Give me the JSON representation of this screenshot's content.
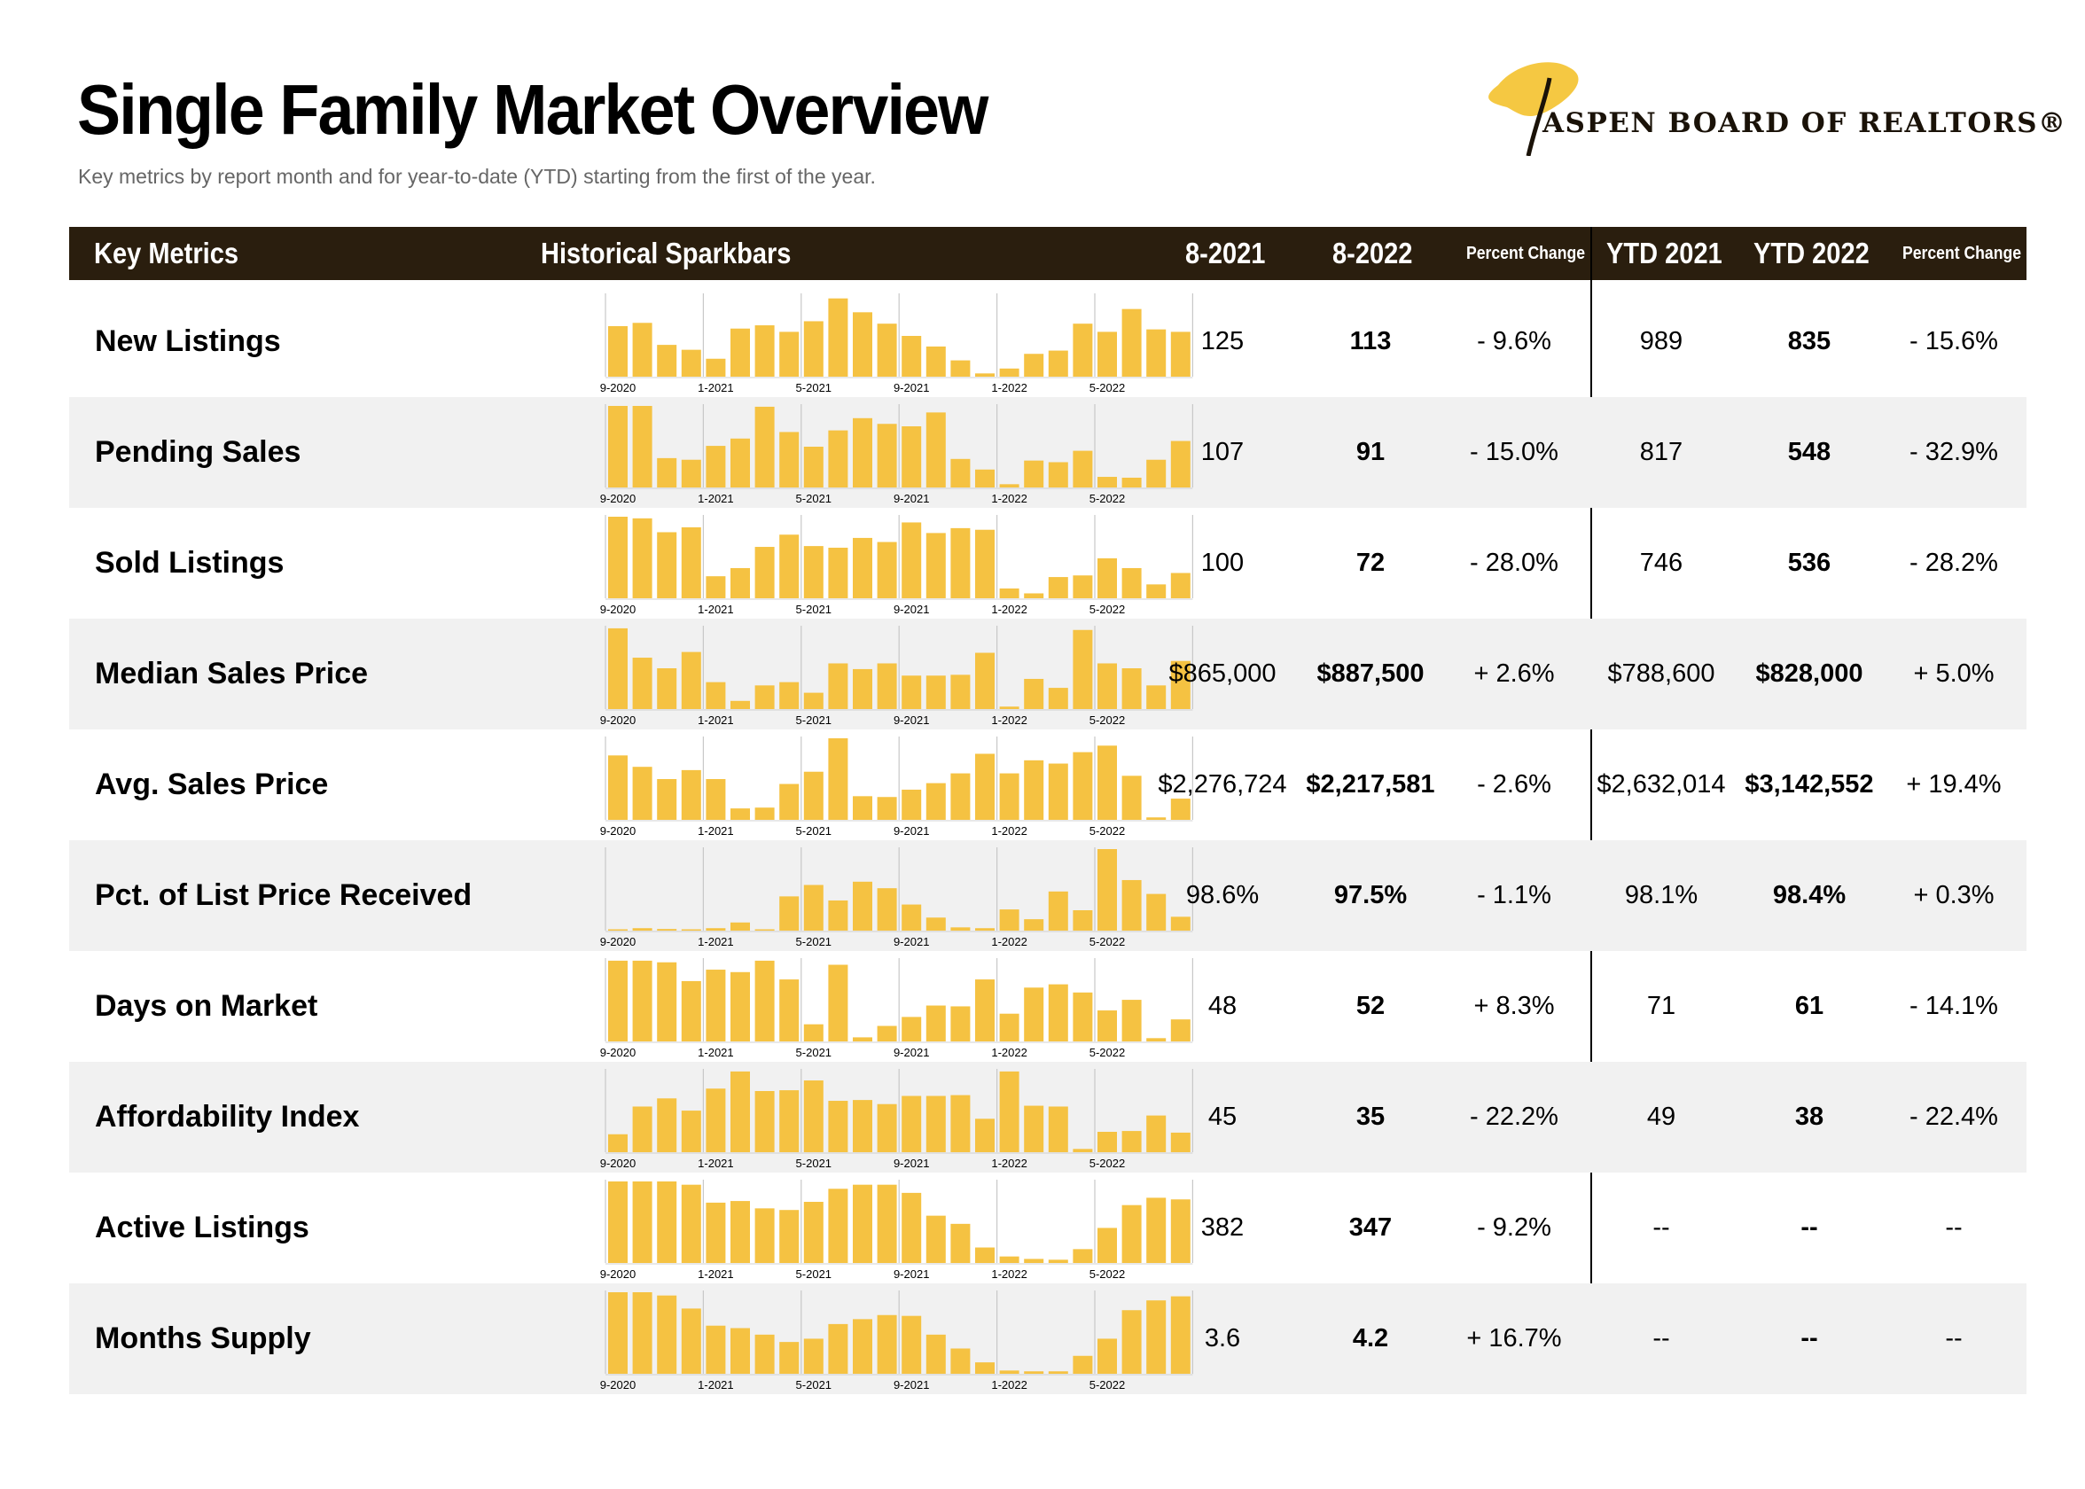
{
  "title": "Single Family Market Overview",
  "subtitle": "Key metrics by report month and for year-to-date (YTD) starting from the first of the year.",
  "logo": {
    "text": "ASPEN BOARD OF REALTORS®",
    "icon": "aspen-leaf-icon",
    "color": "#f5c842"
  },
  "columns": {
    "metric": "Key Metrics",
    "spark": "Historical Sparkbars",
    "m1": "8-2021",
    "m2": "8-2022",
    "pc1": "Percent Change",
    "y1": "YTD 2021",
    "y2": "YTD 2022",
    "pc2": "Percent Change"
  },
  "spark_axis": [
    "9-2020",
    "1-2021",
    "5-2021",
    "9-2021",
    "1-2022",
    "5-2022"
  ],
  "colors": {
    "bar": "#f5c242",
    "header_bg": "#2a1e0e",
    "shade": "#f1f1f1"
  },
  "metrics": [
    {
      "name": "New Listings",
      "m1": "125",
      "m2": "113",
      "pc1": "- 9.6%",
      "y1": "989",
      "y2": "835",
      "pc2": "- 15.6%",
      "bars": [
        0.62,
        0.66,
        0.39,
        0.33,
        0.22,
        0.59,
        0.63,
        0.55,
        0.68,
        0.96,
        0.79,
        0.65,
        0.5,
        0.37,
        0.2,
        0.04,
        0.1,
        0.28,
        0.32,
        0.65,
        0.55,
        0.83,
        0.58,
        0.55
      ]
    },
    {
      "name": "Pending Sales",
      "m1": "107",
      "m2": "91",
      "pc1": "- 15.0%",
      "y1": "817",
      "y2": "548",
      "pc2": "- 32.9%",
      "bars": [
        1.0,
        1.0,
        0.36,
        0.34,
        0.51,
        0.6,
        0.99,
        0.68,
        0.5,
        0.7,
        0.85,
        0.78,
        0.75,
        0.92,
        0.35,
        0.22,
        0.04,
        0.33,
        0.31,
        0.45,
        0.13,
        0.12,
        0.34,
        0.57
      ]
    },
    {
      "name": "Sold Listings",
      "m1": "100",
      "m2": "72",
      "pc1": "- 28.0%",
      "y1": "746",
      "y2": "536",
      "pc2": "- 28.2%",
      "bars": [
        1.0,
        0.98,
        0.81,
        0.87,
        0.27,
        0.37,
        0.63,
        0.78,
        0.64,
        0.62,
        0.74,
        0.69,
        0.93,
        0.8,
        0.86,
        0.84,
        0.12,
        0.06,
        0.26,
        0.28,
        0.49,
        0.37,
        0.17,
        0.31
      ]
    },
    {
      "name": "Median Sales Price",
      "m1": "$865,000",
      "m2": "$887,500",
      "pc1": "+ 2.6%",
      "y1": "$788,600",
      "y2": "$828,000",
      "pc2": "+ 5.0%",
      "bars": [
        0.99,
        0.63,
        0.5,
        0.7,
        0.33,
        0.1,
        0.29,
        0.33,
        0.2,
        0.56,
        0.49,
        0.56,
        0.41,
        0.41,
        0.42,
        0.69,
        0.03,
        0.37,
        0.26,
        0.97,
        0.56,
        0.5,
        0.29,
        0.59
      ]
    },
    {
      "name": "Avg. Sales Price",
      "m1": "$2,276,724",
      "m2": "$2,217,581",
      "pc1": "- 2.6%",
      "y1": "$2,632,014",
      "y2": "$3,142,552",
      "pc2": "+ 19.4%",
      "bars": [
        0.79,
        0.65,
        0.5,
        0.61,
        0.5,
        0.14,
        0.15,
        0.44,
        0.59,
        1.0,
        0.29,
        0.28,
        0.37,
        0.45,
        0.57,
        0.81,
        0.57,
        0.73,
        0.69,
        0.83,
        0.91,
        0.54,
        0.03,
        0.26
      ]
    },
    {
      "name": "Pct. of List Price Received",
      "m1": "98.6%",
      "m2": "97.5%",
      "pc1": "- 1.1%",
      "y1": "98.1%",
      "y2": "98.4%",
      "pc2": "+ 0.3%",
      "bars": [
        0.01,
        0.03,
        0.02,
        0.01,
        0.03,
        0.1,
        0.01,
        0.42,
        0.56,
        0.37,
        0.6,
        0.52,
        0.32,
        0.16,
        0.04,
        0.03,
        0.26,
        0.14,
        0.48,
        0.25,
        1.0,
        0.62,
        0.45,
        0.17
      ]
    },
    {
      "name": "Days on Market",
      "m1": "48",
      "m2": "52",
      "pc1": "+ 8.3%",
      "y1": "71",
      "y2": "61",
      "pc2": "- 14.1%",
      "bars": [
        0.99,
        0.99,
        0.97,
        0.74,
        0.88,
        0.85,
        0.99,
        0.76,
        0.21,
        0.94,
        0.05,
        0.19,
        0.3,
        0.44,
        0.43,
        0.76,
        0.34,
        0.66,
        0.7,
        0.6,
        0.38,
        0.51,
        0.04,
        0.27
      ]
    },
    {
      "name": "Affordability Index",
      "m1": "45",
      "m2": "35",
      "pc1": "- 22.2%",
      "y1": "49",
      "y2": "38",
      "pc2": "- 22.4%",
      "bars": [
        0.22,
        0.56,
        0.66,
        0.51,
        0.78,
        0.99,
        0.75,
        0.76,
        0.88,
        0.63,
        0.64,
        0.59,
        0.69,
        0.69,
        0.7,
        0.41,
        0.99,
        0.57,
        0.56,
        0.04,
        0.25,
        0.26,
        0.45,
        0.24
      ]
    },
    {
      "name": "Active Listings",
      "m1": "382",
      "m2": "347",
      "pc1": "- 9.2%",
      "y1": "--",
      "y2": "--",
      "pc2": "--",
      "bars": [
        1.0,
        1.0,
        1.0,
        0.96,
        0.74,
        0.76,
        0.67,
        0.65,
        0.75,
        0.91,
        0.96,
        0.96,
        0.86,
        0.58,
        0.48,
        0.19,
        0.08,
        0.05,
        0.04,
        0.17,
        0.43,
        0.71,
        0.8,
        0.78
      ]
    },
    {
      "name": "Months Supply",
      "m1": "3.6",
      "m2": "4.2",
      "pc1": "+ 16.7%",
      "y1": "--",
      "y2": "--",
      "pc2": "--",
      "bars": [
        1.0,
        1.0,
        0.96,
        0.8,
        0.59,
        0.56,
        0.48,
        0.39,
        0.43,
        0.61,
        0.67,
        0.72,
        0.71,
        0.48,
        0.31,
        0.14,
        0.04,
        0.03,
        0.03,
        0.22,
        0.43,
        0.78,
        0.9,
        0.95
      ]
    }
  ]
}
